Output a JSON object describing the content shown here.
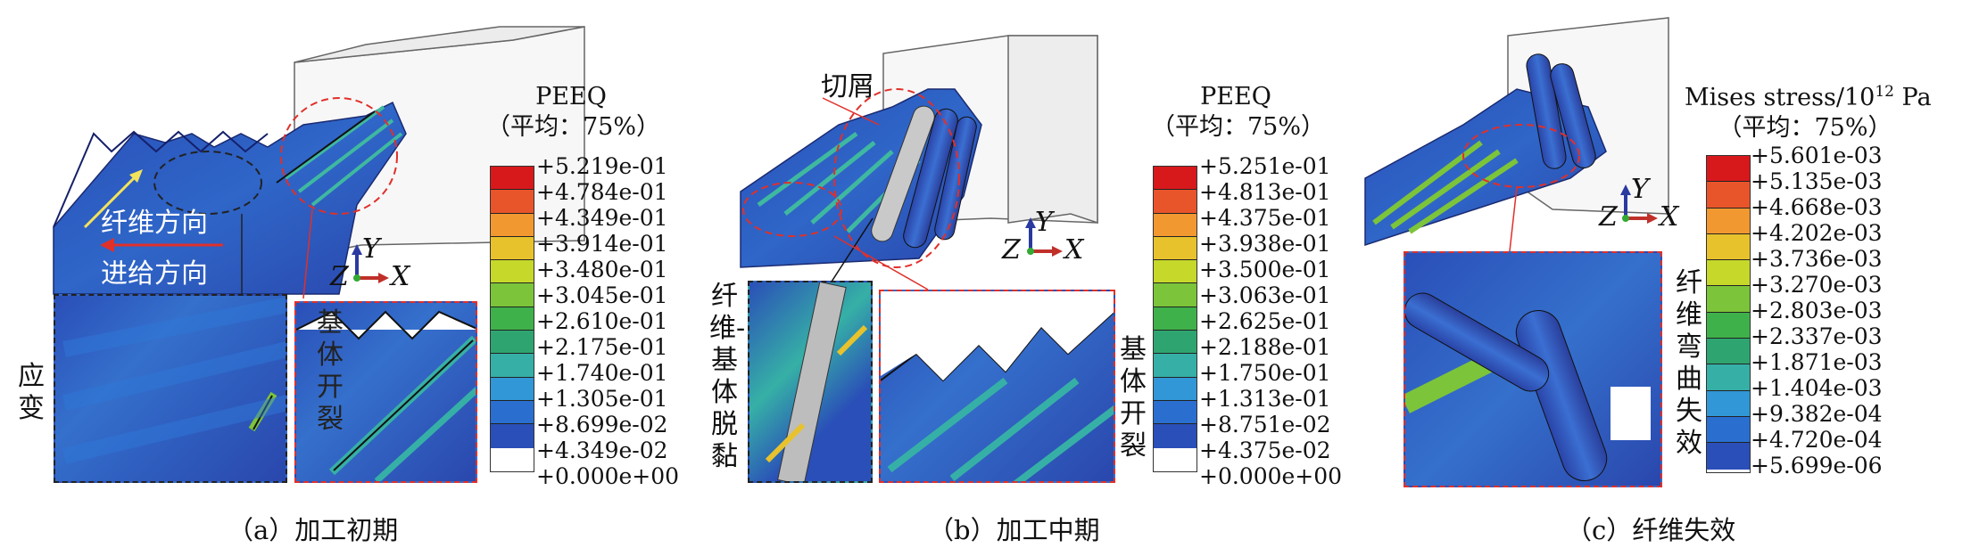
{
  "panels": [
    {
      "caption": "（a）加工初期",
      "legend": {
        "title_line1": "PEEQ",
        "title_line2": "（平均：75%）",
        "values": [
          "+5.219e-01",
          "+4.784e-01",
          "+4.349e-01",
          "+3.914e-01",
          "+3.480e-01",
          "+3.045e-01",
          "+2.610e-01",
          "+2.175e-01",
          "+1.740e-01",
          "+1.305e-01",
          "+8.699e-02",
          "+4.349e-02",
          "+0.000e+00"
        ]
      },
      "label_fiber_dir": "纤维方向",
      "label_feed_dir": "进给方向",
      "label_strain": "应变",
      "label_matrix_crack": "基体开裂",
      "axes": {
        "z": "Z",
        "x": "X",
        "y": "Y"
      }
    },
    {
      "caption": "（b）加工中期",
      "legend": {
        "title_line1": "PEEQ",
        "title_line2": "（平均：75%）",
        "values": [
          "+5.251e-01",
          "+4.813e-01",
          "+4.375e-01",
          "+3.938e-01",
          "+3.500e-01",
          "+3.063e-01",
          "+2.625e-01",
          "+2.188e-01",
          "+1.750e-01",
          "+1.313e-01",
          "+8.751e-02",
          "+4.375e-02",
          "+0.000e+00"
        ]
      },
      "label_chips": "切屑",
      "label_debond": "纤维-基体脱黏",
      "label_matrix_crack": "基体开裂",
      "axes": {
        "z": "Z",
        "x": "X",
        "y": "Y"
      }
    },
    {
      "caption": "（c）纤维失效",
      "legend": {
        "title_line1_main": "Mises stress/10",
        "title_line1_sup": "12",
        "title_line1_unit": " Pa",
        "title_line2": "（平均：75%）",
        "values": [
          "+5.601e-03",
          "+5.135e-03",
          "+4.668e-03",
          "+4.202e-03",
          "+3.736e-03",
          "+3.270e-03",
          "+2.803e-03",
          "+2.337e-03",
          "+1.871e-03",
          "+1.404e-03",
          "+9.382e-04",
          "+4.720e-04",
          "+5.699e-06"
        ]
      },
      "label_fiber_bend": "纤维弯曲失效",
      "axes": {
        "z": "Z",
        "x": "X",
        "y": "Y"
      }
    }
  ],
  "colors": {
    "scale": [
      "#d7191c",
      "#e8552a",
      "#f29830",
      "#e8c22c",
      "#c6d82a",
      "#7cc43a",
      "#3fb14a",
      "#2ea570",
      "#36b0a6",
      "#3197d6",
      "#2a6fd0",
      "#2a4fb8",
      "#2a3aa0"
    ],
    "dashed_red": "#e0302a",
    "dashed_black": "#222222",
    "fiber_arrow": "#f4e35a",
    "feed_arrow": "#e0302a"
  }
}
